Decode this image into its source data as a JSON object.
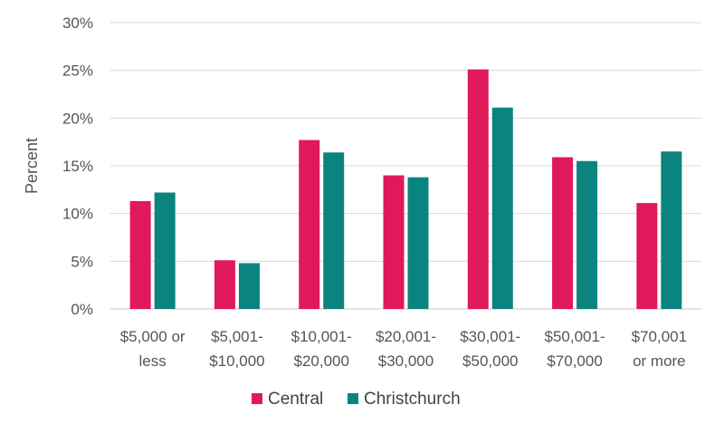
{
  "chart_data": {
    "type": "bar",
    "title": "",
    "xlabel": "",
    "ylabel": "Percent",
    "ylim": [
      0,
      30
    ],
    "yticks": [
      0,
      5,
      10,
      15,
      20,
      25,
      30
    ],
    "ytick_labels": [
      "0%",
      "5%",
      "10%",
      "15%",
      "20%",
      "25%",
      "30%"
    ],
    "grid": true,
    "legend_position": "bottom",
    "categories": [
      [
        "$5,000 or",
        "less"
      ],
      [
        "$5,001-",
        "$10,000"
      ],
      [
        "$10,001-",
        "$20,000"
      ],
      [
        "$20,001-",
        "$30,000"
      ],
      [
        "$30,001-",
        "$50,000"
      ],
      [
        "$50,001-",
        "$70,000"
      ],
      [
        "$70,001",
        "or more"
      ]
    ],
    "series": [
      {
        "name": "Central",
        "color": "#E0195A",
        "values": [
          11.3,
          5.1,
          17.7,
          14.0,
          25.1,
          15.9,
          11.1
        ]
      },
      {
        "name": "Christchurch",
        "color": "#0B847F",
        "values": [
          12.2,
          4.8,
          16.4,
          13.8,
          21.1,
          15.5,
          16.5
        ]
      }
    ]
  }
}
